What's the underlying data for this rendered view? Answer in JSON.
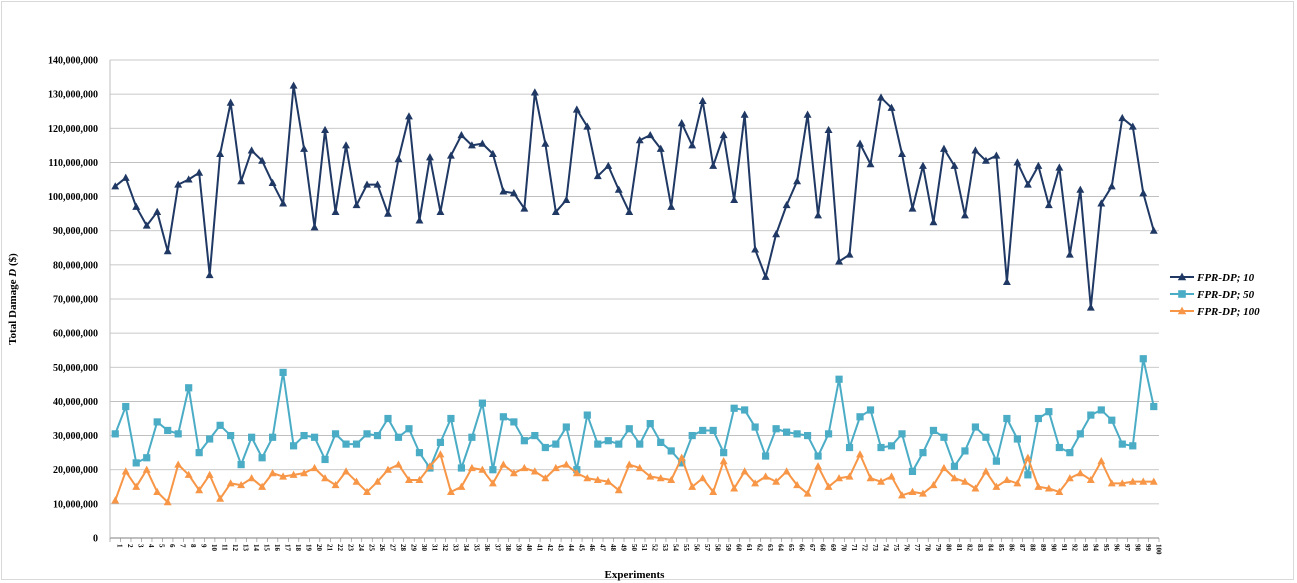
{
  "chart_data": {
    "type": "line",
    "title": "",
    "xlabel": "Experiments",
    "ylabel_prefix": "Total Damage ",
    "ylabel_var": "D",
    "ylabel_suffix": " ($)",
    "ylim": [
      0,
      140000000
    ],
    "y_ticks": [
      0,
      10000000,
      20000000,
      30000000,
      40000000,
      50000000,
      60000000,
      70000000,
      80000000,
      90000000,
      100000000,
      110000000,
      120000000,
      130000000,
      140000000
    ],
    "y_tick_labels": [
      "0",
      "10,000,000",
      "20,000,000",
      "30,000,000",
      "40,000,000",
      "50,000,000",
      "60,000,000",
      "70,000,000",
      "80,000,000",
      "90,000,000",
      "100,000,000",
      "110,000,000",
      "120,000,000",
      "130,000,000",
      "140,000,000"
    ],
    "grid": true,
    "legend_position": "right",
    "x": [
      "1",
      "2",
      "3",
      "4",
      "5",
      "6",
      "7",
      "8",
      "9",
      "10",
      "11",
      "12",
      "13",
      "14",
      "15",
      "16",
      "17",
      "18",
      "19",
      "20",
      "21",
      "22",
      "23",
      "24",
      "25",
      "26",
      "27",
      "28",
      "29",
      "30",
      "31",
      "32",
      "33",
      "34",
      "35",
      "36",
      "37",
      "38",
      "39",
      "40",
      "41",
      "42",
      "43",
      "44",
      "45",
      "46",
      "47",
      "48",
      "49",
      "50",
      "51",
      "52",
      "53",
      "54",
      "55",
      "56",
      "57",
      "58",
      "59",
      "60",
      "61",
      "62",
      "63",
      "64",
      "65",
      "66",
      "67",
      "68",
      "69",
      "70",
      "71",
      "72",
      "73",
      "74",
      "75",
      "76",
      "77",
      "78",
      "79",
      "80",
      "81",
      "82",
      "83",
      "84",
      "85",
      "86",
      "87",
      "88",
      "89",
      "90",
      "91",
      "92",
      "93",
      "94",
      "95",
      "96",
      "97",
      "98",
      "99",
      "100"
    ],
    "series": [
      {
        "name": "FPR-DP; 10",
        "color": "#1f3864",
        "marker": "triangle",
        "values": [
          103000000,
          105500000,
          97000000,
          91500000,
          95500000,
          84000000,
          103500000,
          105000000,
          107000000,
          77000000,
          112500000,
          127500000,
          104500000,
          113500000,
          110500000,
          104000000,
          98000000,
          132500000,
          114000000,
          91000000,
          119500000,
          95500000,
          115000000,
          97500000,
          103500000,
          103500000,
          95000000,
          111000000,
          123500000,
          93000000,
          111500000,
          95500000,
          112000000,
          118000000,
          115000000,
          115500000,
          112500000,
          101500000,
          101000000,
          96500000,
          130500000,
          115500000,
          95500000,
          99000000,
          125500000,
          120500000,
          106000000,
          109000000,
          102000000,
          95500000,
          116500000,
          118000000,
          114000000,
          97000000,
          121500000,
          115000000,
          128000000,
          109000000,
          118000000,
          99000000,
          124000000,
          84500000,
          76500000,
          89000000,
          97500000,
          104500000,
          124000000,
          94500000,
          119500000,
          81000000,
          83000000,
          115500000,
          109500000,
          129000000,
          126000000,
          112500000,
          96500000,
          109000000,
          92500000,
          114000000,
          109000000,
          94500000,
          113500000,
          110500000,
          112000000,
          75000000,
          110000000,
          103500000,
          109000000,
          97500000,
          108500000,
          83000000,
          102000000,
          67500000,
          98000000,
          103000000,
          123000000,
          120500000,
          101000000,
          90000000
        ]
      },
      {
        "name": "FPR-DP; 50",
        "color": "#4bacc6",
        "marker": "square",
        "values": [
          30500000,
          38500000,
          22000000,
          23500000,
          34000000,
          31500000,
          30500000,
          44000000,
          25000000,
          29000000,
          33000000,
          30000000,
          21500000,
          29500000,
          23500000,
          29500000,
          48500000,
          27000000,
          30000000,
          29500000,
          23000000,
          30500000,
          27500000,
          27500000,
          30500000,
          30000000,
          35000000,
          29500000,
          32000000,
          25000000,
          20500000,
          28000000,
          35000000,
          20500000,
          29500000,
          39500000,
          20000000,
          35500000,
          34000000,
          28500000,
          30000000,
          26500000,
          27500000,
          32500000,
          20000000,
          36000000,
          27500000,
          28500000,
          27500000,
          32000000,
          27500000,
          33500000,
          28000000,
          25500000,
          22000000,
          30000000,
          31500000,
          31500000,
          25000000,
          38000000,
          37500000,
          32500000,
          24000000,
          32000000,
          31000000,
          30500000,
          30000000,
          24000000,
          30500000,
          46500000,
          26500000,
          35500000,
          37500000,
          26500000,
          27000000,
          30500000,
          19500000,
          25000000,
          31500000,
          29500000,
          21000000,
          25500000,
          32500000,
          29500000,
          22500000,
          35000000,
          29000000,
          18500000,
          35000000,
          37000000,
          26500000,
          25000000,
          30500000,
          36000000,
          37500000,
          34500000,
          27500000,
          27000000,
          52500000,
          38500000
        ]
      },
      {
        "name": "FPR-DP; 100",
        "color": "#f79646",
        "marker": "triangle",
        "values": [
          11000000,
          19500000,
          15000000,
          20000000,
          13500000,
          10500000,
          21500000,
          18500000,
          14000000,
          18500000,
          11500000,
          16000000,
          15500000,
          17500000,
          15000000,
          19000000,
          18000000,
          18500000,
          19000000,
          20500000,
          17500000,
          15500000,
          19500000,
          16500000,
          13500000,
          16500000,
          20000000,
          21500000,
          17000000,
          17000000,
          21000000,
          24500000,
          13500000,
          15000000,
          20500000,
          20000000,
          16000000,
          21500000,
          19000000,
          20500000,
          19500000,
          17500000,
          20500000,
          21500000,
          19000000,
          17500000,
          17000000,
          16500000,
          14000000,
          21500000,
          20500000,
          18000000,
          17500000,
          17000000,
          23500000,
          15000000,
          17500000,
          13500000,
          22500000,
          14500000,
          19500000,
          16000000,
          18000000,
          16500000,
          19500000,
          15500000,
          13000000,
          21000000,
          15000000,
          17500000,
          18000000,
          24500000,
          17500000,
          16500000,
          18000000,
          12500000,
          13500000,
          13000000,
          15500000,
          20500000,
          17500000,
          16500000,
          14500000,
          19500000,
          15000000,
          17000000,
          16000000,
          23500000,
          15000000,
          14500000,
          13500000,
          17500000,
          19000000,
          17000000,
          22500000,
          16000000,
          16000000,
          16500000,
          16500000,
          16500000
        ]
      }
    ]
  }
}
